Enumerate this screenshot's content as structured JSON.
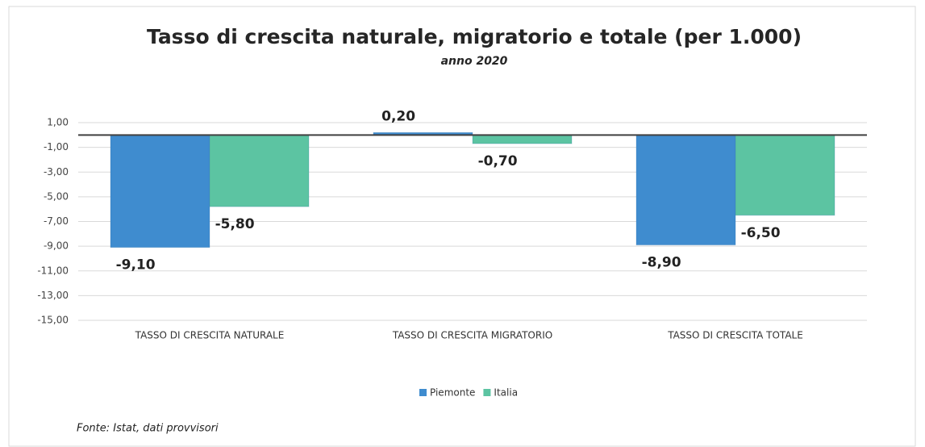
{
  "chart_data": {
    "type": "bar",
    "title": "Tasso di crescita naturale, migratorio e totale (per 1.000)",
    "subtitle": "anno 2020",
    "source": "Fonte: Istat, dati provvisori",
    "categories": [
      "TASSO DI CRESCITA NATURALE",
      "TASSO DI CRESCITA MIGRATORIO",
      "TASSO DI  CRESCITA TOTALE"
    ],
    "series": [
      {
        "name": "Piemonte",
        "color": "#3f8ccf",
        "values": [
          -9.1,
          0.2,
          -8.9
        ],
        "value_labels": [
          "-9,10",
          "0,20",
          "-8,90"
        ]
      },
      {
        "name": "Italia",
        "color": "#5cc4a2",
        "values": [
          -5.8,
          -0.7,
          -6.5
        ],
        "value_labels": [
          "-5,80",
          "-0,70",
          "-6,50"
        ]
      }
    ],
    "ylim": [
      -15,
      1
    ],
    "yticks": [
      {
        "value": 1,
        "label": "1,00"
      },
      {
        "value": -1,
        "label": "-1,00"
      },
      {
        "value": -3,
        "label": "-3,00"
      },
      {
        "value": -5,
        "label": "-5,00"
      },
      {
        "value": -7,
        "label": "-7,00"
      },
      {
        "value": -9,
        "label": "-9,00"
      },
      {
        "value": -11,
        "label": "-11,00"
      },
      {
        "value": -13,
        "label": "-13,00"
      },
      {
        "value": -15,
        "label": "-15,00"
      }
    ],
    "grid": true,
    "legend": "bottom"
  }
}
